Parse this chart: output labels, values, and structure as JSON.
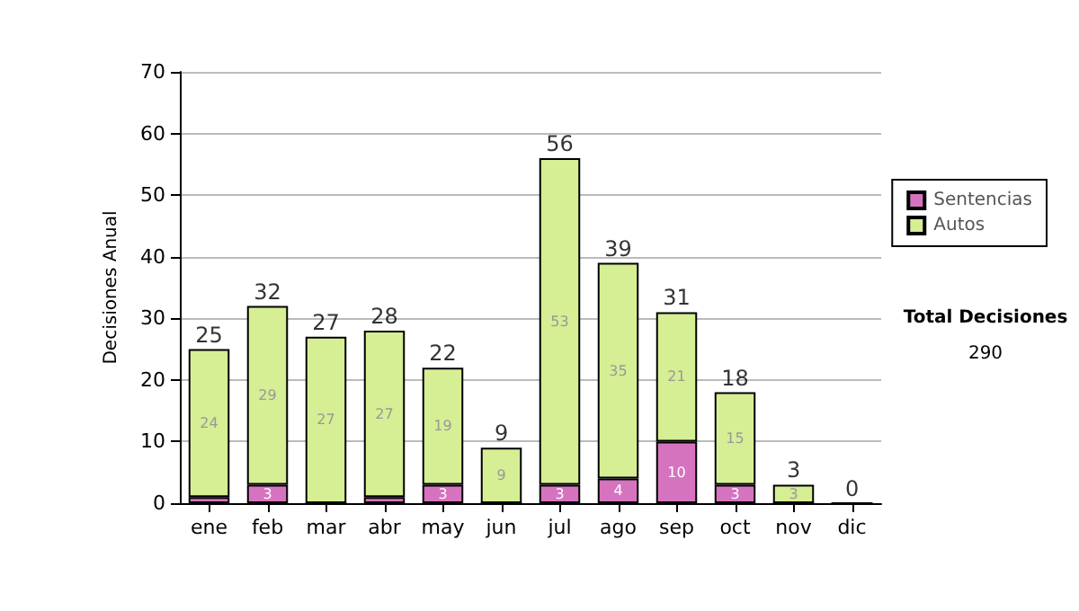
{
  "chart_data": {
    "type": "bar",
    "stacked": true,
    "ylabel": "Decisiones Anual",
    "categories": [
      "ene",
      "feb",
      "mar",
      "abr",
      "may",
      "jun",
      "jul",
      "ago",
      "sep",
      "oct",
      "nov",
      "dic"
    ],
    "series": [
      {
        "name": "Sentencias",
        "color": "#d673bf",
        "values": [
          1,
          3,
          0,
          1,
          3,
          0,
          3,
          4,
          10,
          3,
          0,
          0
        ],
        "value_labels": [
          null,
          "3",
          null,
          null,
          "3",
          null,
          "3",
          "4",
          "10",
          "3",
          null,
          null
        ]
      },
      {
        "name": "Autos",
        "color": "#d6ee94",
        "values": [
          24,
          29,
          27,
          27,
          19,
          9,
          53,
          35,
          21,
          15,
          3,
          0
        ],
        "value_labels": [
          "24",
          "29",
          "27",
          "27",
          "19",
          "9",
          "53",
          "35",
          "21",
          "15",
          "3",
          null
        ]
      }
    ],
    "totals": [
      "25",
      "32",
      "27",
      "28",
      "22",
      "9",
      "56",
      "39",
      "31",
      "18",
      "3",
      "0"
    ],
    "ylim": [
      0,
      70
    ],
    "yticks": [
      0,
      10,
      20,
      30,
      40,
      50,
      60,
      70
    ],
    "grid": "y",
    "legend": "right",
    "annotations": [
      "Total Decisiones",
      "290"
    ]
  }
}
